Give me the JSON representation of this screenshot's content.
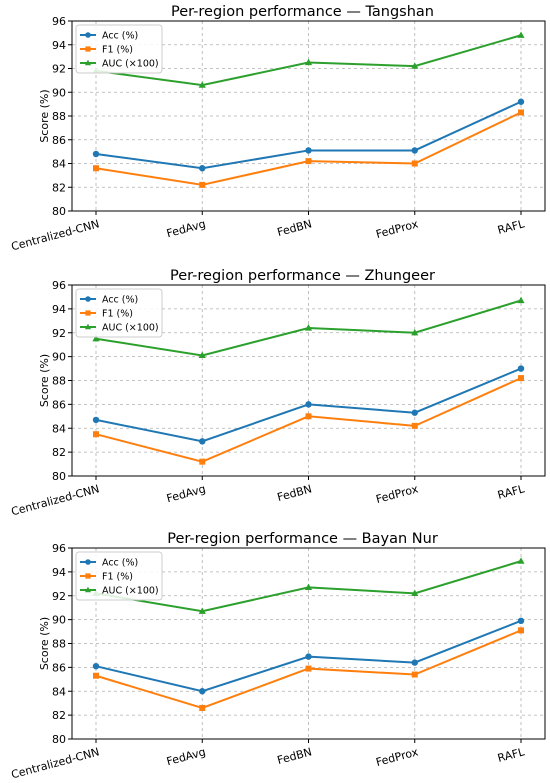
{
  "chart_data": [
    {
      "type": "line",
      "title": "Per-region performance — Tangshan",
      "xlabel": "",
      "ylabel": "Score (%)",
      "categories": [
        "Centralized-CNN",
        "FedAvg",
        "FedBN",
        "FedProx",
        "RAFL"
      ],
      "ylim": [
        80,
        96
      ],
      "yticks": [
        "80",
        "82",
        "84",
        "86",
        "88",
        "90",
        "92",
        "94",
        "96"
      ],
      "grid": true,
      "legend_position": "top-left",
      "series": [
        {
          "name": "Acc (%)",
          "values": [
            84.8,
            83.6,
            85.1,
            85.1,
            89.2
          ],
          "color": "#1f77b4",
          "marker": "circle"
        },
        {
          "name": "F1 (%)",
          "values": [
            83.6,
            82.2,
            84.2,
            84.0,
            88.3
          ],
          "color": "#ff7f0e",
          "marker": "square"
        },
        {
          "name": "AUC (×100)",
          "values": [
            91.8,
            90.6,
            92.5,
            92.2,
            94.8
          ],
          "color": "#2ca02c",
          "marker": "triangle"
        }
      ]
    },
    {
      "type": "line",
      "title": "Per-region performance — Zhungeer",
      "xlabel": "",
      "ylabel": "Score (%)",
      "categories": [
        "Centralized-CNN",
        "FedAvg",
        "FedBN",
        "FedProx",
        "RAFL"
      ],
      "ylim": [
        80,
        96
      ],
      "yticks": [
        "80",
        "82",
        "84",
        "86",
        "88",
        "90",
        "92",
        "94",
        "96"
      ],
      "grid": true,
      "legend_position": "top-left",
      "series": [
        {
          "name": "Acc (%)",
          "values": [
            84.7,
            82.9,
            86.0,
            85.3,
            89.0
          ],
          "color": "#1f77b4",
          "marker": "circle"
        },
        {
          "name": "F1 (%)",
          "values": [
            83.5,
            81.2,
            85.0,
            84.2,
            88.2
          ],
          "color": "#ff7f0e",
          "marker": "square"
        },
        {
          "name": "AUC (×100)",
          "values": [
            91.5,
            90.1,
            92.4,
            92.0,
            94.7
          ],
          "color": "#2ca02c",
          "marker": "triangle"
        }
      ]
    },
    {
      "type": "line",
      "title": "Per-region performance — Bayan Nur",
      "xlabel": "",
      "ylabel": "Score (%)",
      "categories": [
        "Centralized-CNN",
        "FedAvg",
        "FedBN",
        "FedProx",
        "RAFL"
      ],
      "ylim": [
        80,
        96
      ],
      "yticks": [
        "80",
        "82",
        "84",
        "86",
        "88",
        "90",
        "92",
        "94",
        "96"
      ],
      "grid": true,
      "legend_position": "top-left",
      "series": [
        {
          "name": "Acc (%)",
          "values": [
            86.1,
            84.0,
            86.9,
            86.4,
            89.9
          ],
          "color": "#1f77b4",
          "marker": "circle"
        },
        {
          "name": "F1 (%)",
          "values": [
            85.3,
            82.6,
            85.9,
            85.4,
            89.1
          ],
          "color": "#ff7f0e",
          "marker": "square"
        },
        {
          "name": "AUC (×100)",
          "values": [
            92.2,
            90.7,
            92.7,
            92.2,
            94.9
          ],
          "color": "#2ca02c",
          "marker": "triangle"
        }
      ]
    }
  ]
}
